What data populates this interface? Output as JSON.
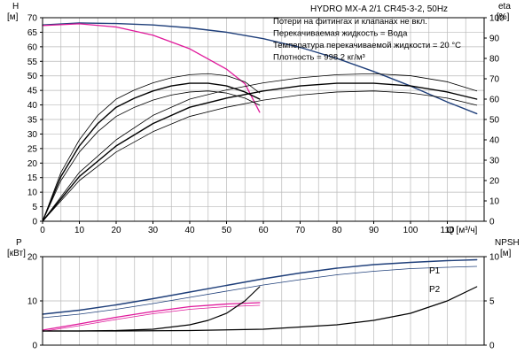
{
  "title": "HYDRO MX-A 2/1 CR45-3-2, 50Hz",
  "notes": [
    "Потери на фитингах и клапанах не вкл.",
    "Перекачиваемая жидкость = Вода",
    "Температура перекачиваемой жидкости = 20 °C",
    "Плотность = 998.2 кг/м³"
  ],
  "colors": {
    "head": "#1f3f7a",
    "power_p1": "#1f3f7a",
    "npsh": "#000000",
    "efficiency": "#000000",
    "magenta": "#e0199b",
    "grid": "#b9b9b9"
  },
  "chart_data": [
    {
      "type": "line",
      "xlabel": "Q [м³/ч]",
      "ylabel": "H",
      "ylabel_unit": "[м]",
      "y2label": "eta",
      "y2label_unit": "[%]",
      "xlim": [
        0,
        120
      ],
      "xticks": [
        0,
        10,
        20,
        30,
        40,
        50,
        60,
        70,
        80,
        90,
        100,
        110
      ],
      "ylim": [
        0,
        70
      ],
      "yticks": [
        0,
        5,
        10,
        15,
        20,
        25,
        30,
        35,
        40,
        45,
        50,
        55,
        60,
        65,
        70
      ],
      "y2lim": [
        0,
        100
      ],
      "y2ticks": [
        0,
        10,
        20,
        30,
        40,
        50,
        60,
        70,
        80,
        90,
        100
      ],
      "grid": true,
      "series": [
        {
          "key": "head_two_pumps",
          "color": "#1f3f7a",
          "width": 1.4,
          "axis": "left",
          "points": [
            [
              0,
              67.5
            ],
            [
              10,
              68.2
            ],
            [
              20,
              68
            ],
            [
              30,
              67.5
            ],
            [
              40,
              66.5
            ],
            [
              50,
              65
            ],
            [
              60,
              62.8
            ],
            [
              70,
              59.8
            ],
            [
              80,
              56
            ],
            [
              90,
              51.5
            ],
            [
              100,
              46.5
            ],
            [
              110,
              41
            ],
            [
              118,
              37
            ]
          ]
        },
        {
          "key": "head_one_pump",
          "color": "#e0199b",
          "width": 1.3,
          "axis": "left",
          "points": [
            [
              0,
              67.3
            ],
            [
              10,
              67.9
            ],
            [
              20,
              66.8
            ],
            [
              30,
              64
            ],
            [
              40,
              59.3
            ],
            [
              50,
              52.3
            ],
            [
              55,
              47.3
            ],
            [
              59,
              37.5
            ]
          ]
        },
        {
          "key": "eta_one_pump_upper",
          "color": "#000000",
          "width": 0.8,
          "axis": "right",
          "points": [
            [
              0,
              0
            ],
            [
              5,
              24
            ],
            [
              10,
              40
            ],
            [
              15,
              52
            ],
            [
              20,
              60
            ],
            [
              25,
              64.5
            ],
            [
              30,
              68
            ],
            [
              35,
              70.5
            ],
            [
              40,
              72
            ],
            [
              45,
              72.5
            ],
            [
              50,
              71.5
            ],
            [
              55,
              68.5
            ],
            [
              59,
              63
            ]
          ]
        },
        {
          "key": "eta_one_pump_mid",
          "color": "#000000",
          "width": 1.4,
          "axis": "right",
          "points": [
            [
              0,
              0
            ],
            [
              5,
              22
            ],
            [
              10,
              37
            ],
            [
              15,
              48
            ],
            [
              20,
              56
            ],
            [
              25,
              60.5
            ],
            [
              30,
              64
            ],
            [
              35,
              66.5
            ],
            [
              40,
              67.8
            ],
            [
              45,
              67.8
            ],
            [
              50,
              66.5
            ],
            [
              55,
              63.5
            ],
            [
              59,
              60
            ]
          ]
        },
        {
          "key": "eta_one_pump_lower",
          "color": "#000000",
          "width": 0.8,
          "axis": "right",
          "points": [
            [
              0,
              0
            ],
            [
              5,
              20
            ],
            [
              10,
              34
            ],
            [
              15,
              44
            ],
            [
              20,
              51.5
            ],
            [
              25,
              56
            ],
            [
              30,
              59.5
            ],
            [
              35,
              62
            ],
            [
              40,
              63.5
            ],
            [
              45,
              64
            ],
            [
              50,
              63
            ],
            [
              55,
              60.5
            ],
            [
              59,
              57
            ]
          ]
        },
        {
          "key": "eta_two_pumps_upper",
          "color": "#000000",
          "width": 0.8,
          "axis": "right",
          "points": [
            [
              0,
              0
            ],
            [
              10,
              24
            ],
            [
              20,
              40
            ],
            [
              30,
              52
            ],
            [
              40,
              60
            ],
            [
              50,
              64.5
            ],
            [
              60,
              68
            ],
            [
              70,
              70.5
            ],
            [
              80,
              72
            ],
            [
              90,
              72.5
            ],
            [
              100,
              71.5
            ],
            [
              110,
              68.5
            ],
            [
              118,
              64
            ]
          ]
        },
        {
          "key": "eta_two_pumps_mid",
          "color": "#000000",
          "width": 1.4,
          "axis": "right",
          "points": [
            [
              0,
              0
            ],
            [
              10,
              22
            ],
            [
              20,
              37
            ],
            [
              30,
              48
            ],
            [
              40,
              56
            ],
            [
              50,
              60.5
            ],
            [
              60,
              64
            ],
            [
              70,
              66.5
            ],
            [
              80,
              67.8
            ],
            [
              90,
              67.8
            ],
            [
              100,
              66.5
            ],
            [
              110,
              63.5
            ],
            [
              118,
              60
            ]
          ]
        },
        {
          "key": "eta_two_pumps_lower",
          "color": "#000000",
          "width": 0.8,
          "axis": "right",
          "points": [
            [
              0,
              0
            ],
            [
              10,
              20
            ],
            [
              20,
              34
            ],
            [
              30,
              44
            ],
            [
              40,
              51.5
            ],
            [
              50,
              56
            ],
            [
              60,
              59.5
            ],
            [
              70,
              62
            ],
            [
              80,
              63.5
            ],
            [
              90,
              64
            ],
            [
              100,
              63
            ],
            [
              110,
              60.5
            ],
            [
              118,
              57
            ]
          ]
        }
      ]
    },
    {
      "type": "line",
      "ylabel": "P",
      "ylabel_unit": "[кВт]",
      "y2label": "NPSH",
      "y2label_unit": "[м]",
      "xlim": [
        0,
        120
      ],
      "ylim": [
        0,
        20
      ],
      "yticks": [
        0,
        10,
        20
      ],
      "y2lim": [
        0,
        10
      ],
      "y2ticks": [
        0,
        5,
        10
      ],
      "grid": true,
      "series": [
        {
          "name": "P1",
          "key": "p1_two_pumps",
          "color": "#1f3f7a",
          "width": 1.4,
          "axis": "left",
          "points": [
            [
              0,
              7
            ],
            [
              10,
              7.9
            ],
            [
              20,
              9.1
            ],
            [
              30,
              10.5
            ],
            [
              40,
              12
            ],
            [
              50,
              13.5
            ],
            [
              60,
              15
            ],
            [
              70,
              16.3
            ],
            [
              80,
              17.4
            ],
            [
              90,
              18.2
            ],
            [
              100,
              18.7
            ],
            [
              110,
              19.1
            ],
            [
              118,
              19.3
            ]
          ]
        },
        {
          "name": "P2",
          "key": "p2_two_pumps",
          "color": "#1f3f7a",
          "width": 0.8,
          "axis": "left",
          "points": [
            [
              0,
              6.2
            ],
            [
              10,
              7
            ],
            [
              20,
              8.1
            ],
            [
              30,
              9.4
            ],
            [
              40,
              10.8
            ],
            [
              50,
              12.2
            ],
            [
              60,
              13.6
            ],
            [
              70,
              14.8
            ],
            [
              80,
              15.9
            ],
            [
              90,
              16.7
            ],
            [
              100,
              17.3
            ],
            [
              110,
              17.6
            ],
            [
              118,
              17.8
            ]
          ]
        },
        {
          "key": "p1_one_pump",
          "color": "#e0199b",
          "width": 1.3,
          "axis": "left",
          "points": [
            [
              0,
              3.4
            ],
            [
              10,
              4.8
            ],
            [
              20,
              6.3
            ],
            [
              30,
              7.6
            ],
            [
              40,
              8.7
            ],
            [
              50,
              9.3
            ],
            [
              59,
              9.6
            ]
          ]
        },
        {
          "key": "p2_one_pump",
          "color": "#e0199b",
          "width": 0.8,
          "axis": "left",
          "points": [
            [
              0,
              3.1
            ],
            [
              10,
              4.4
            ],
            [
              20,
              5.8
            ],
            [
              30,
              7.1
            ],
            [
              40,
              8.1
            ],
            [
              50,
              8.7
            ],
            [
              59,
              9.0
            ]
          ]
        },
        {
          "key": "npsh_one_pump",
          "color": "#000000",
          "width": 1.2,
          "axis": "right",
          "points": [
            [
              0,
              1.6
            ],
            [
              10,
              1.6
            ],
            [
              20,
              1.65
            ],
            [
              30,
              1.8
            ],
            [
              40,
              2.3
            ],
            [
              45,
              2.8
            ],
            [
              50,
              3.6
            ],
            [
              55,
              5.0
            ],
            [
              59,
              6.6
            ]
          ]
        },
        {
          "key": "npsh_two_pumps",
          "color": "#000000",
          "width": 1.2,
          "axis": "right",
          "points": [
            [
              0,
              1.6
            ],
            [
              20,
              1.6
            ],
            [
              40,
              1.65
            ],
            [
              60,
              1.8
            ],
            [
              80,
              2.3
            ],
            [
              90,
              2.8
            ],
            [
              100,
              3.6
            ],
            [
              110,
              5.0
            ],
            [
              118,
              6.6
            ]
          ]
        }
      ]
    }
  ]
}
